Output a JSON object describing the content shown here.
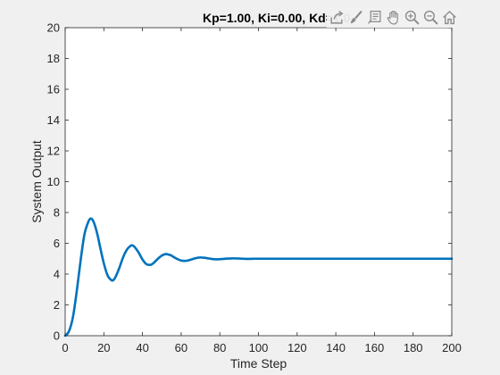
{
  "toolbar": {
    "icons": [
      "export-icon",
      "brush-icon",
      "data-tips-icon",
      "pan-icon",
      "zoom-in-icon",
      "zoom-out-icon",
      "home-icon"
    ]
  },
  "chart_data": {
    "type": "line",
    "title": "Kp=1.00, Ki=0.00, Kd=1.0",
    "xlabel": "Time Step",
    "ylabel": "System Output",
    "xlim": [
      0,
      200
    ],
    "ylim": [
      0,
      20
    ],
    "xticks": [
      0,
      20,
      40,
      60,
      80,
      100,
      120,
      140,
      160,
      180,
      200
    ],
    "yticks": [
      0,
      2,
      4,
      6,
      8,
      10,
      12,
      14,
      16,
      18,
      20
    ],
    "grid": false,
    "line_color": "#0072BD",
    "series": [
      {
        "x": [
          0,
          2,
          4,
          6,
          8,
          10,
          12,
          13,
          14,
          15,
          16,
          17,
          18,
          20,
          22,
          24,
          25,
          26,
          28,
          30,
          32,
          34,
          35,
          36,
          38,
          40,
          42,
          44,
          45,
          46,
          48,
          50,
          52,
          54,
          55,
          56,
          58,
          60,
          62,
          64,
          66,
          68,
          70,
          72,
          74,
          76,
          78,
          80,
          82,
          84,
          86,
          88,
          90,
          92,
          94,
          96,
          98,
          100,
          105,
          110,
          115,
          120,
          130,
          140,
          150,
          160,
          170,
          180,
          190,
          200
        ],
        "y": [
          0,
          0.3,
          1.2,
          2.9,
          4.9,
          6.6,
          7.4,
          7.6,
          7.55,
          7.3,
          6.9,
          6.4,
          5.8,
          4.7,
          3.9,
          3.6,
          3.62,
          3.8,
          4.4,
          5.1,
          5.6,
          5.85,
          5.85,
          5.75,
          5.4,
          4.95,
          4.65,
          4.6,
          4.65,
          4.75,
          5.0,
          5.2,
          5.3,
          5.25,
          5.2,
          5.12,
          4.98,
          4.88,
          4.86,
          4.9,
          4.98,
          5.05,
          5.08,
          5.06,
          5.02,
          4.98,
          4.96,
          4.97,
          4.99,
          5.01,
          5.02,
          5.02,
          5.01,
          5.0,
          4.99,
          4.99,
          5.0,
          5.0,
          5.0,
          5.0,
          5.0,
          5.0,
          5.0,
          5.0,
          5.0,
          5.0,
          5.0,
          5.0,
          5.0,
          5.0
        ]
      }
    ]
  }
}
